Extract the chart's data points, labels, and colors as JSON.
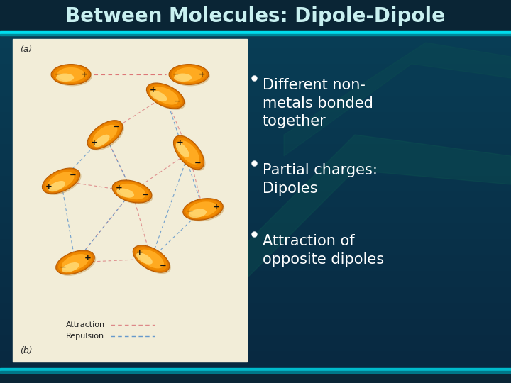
{
  "title": "Between Molecules: Dipole-Dipole",
  "title_color": "#C8F0F0",
  "title_fontsize": 20,
  "bg_dark": "#062035",
  "bg_mid": "#0A3A50",
  "bullet_points": [
    "Different non-\nmetals bonded\ntogether",
    "Partial charges:\nDipoles",
    "Attraction of\nopposite dipoles"
  ],
  "bullet_color": "#FFFFFF",
  "bullet_fontsize": 15,
  "accent_cyan": "#00DDEE",
  "panel_bg": "#F2EDD8",
  "title_bar_bg": "#0A2A3A"
}
